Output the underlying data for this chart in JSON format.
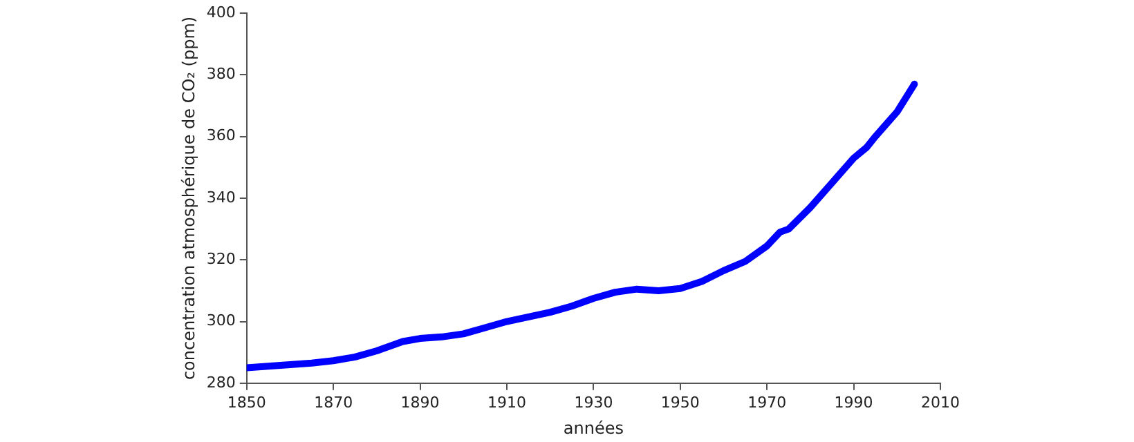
{
  "chart_data": {
    "type": "line",
    "xlabel": "années",
    "ylabel": "concentration atmosphérique de CO₂ (ppm)",
    "x": [
      1850,
      1855,
      1860,
      1865,
      1870,
      1875,
      1880,
      1883,
      1886,
      1890,
      1895,
      1900,
      1905,
      1910,
      1915,
      1920,
      1925,
      1930,
      1935,
      1940,
      1945,
      1950,
      1955,
      1960,
      1965,
      1970,
      1973,
      1975,
      1980,
      1985,
      1990,
      1993,
      1995,
      2000,
      2004
    ],
    "series": [
      {
        "color": "#0000ff",
        "values": [
          285,
          285.5,
          286,
          286.5,
          287.3,
          288.5,
          290.5,
          292,
          293.5,
          294.5,
          295,
          296,
          298,
          300,
          301.5,
          303,
          305,
          307.5,
          309.5,
          310.5,
          310,
          310.7,
          313,
          316.5,
          319.5,
          324.5,
          329,
          330,
          337,
          345,
          353,
          356.5,
          360,
          368,
          377
        ]
      }
    ],
    "xlim": [
      1850,
      2010
    ],
    "xticks": [
      1850,
      1870,
      1890,
      1910,
      1930,
      1950,
      1970,
      1990,
      2010
    ],
    "ylim": [
      280,
      400
    ],
    "yticks": [
      280,
      300,
      320,
      340,
      360,
      380,
      400
    ],
    "grid": false,
    "legend": false,
    "marker": "none",
    "line_style": "solid"
  }
}
